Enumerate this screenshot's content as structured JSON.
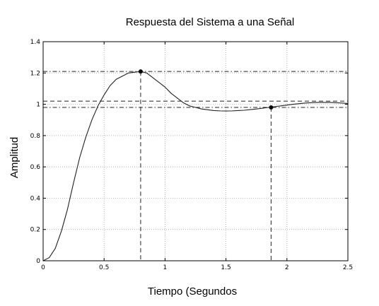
{
  "chart_data": {
    "type": "line",
    "title": "Respuesta del Sistema a una Señal",
    "xlabel": "Tiempo (Segundos",
    "ylabel": "Amplitud",
    "xlim": [
      0,
      2.5
    ],
    "ylim": [
      0,
      1.4
    ],
    "xticks": [
      0,
      0.5,
      1,
      1.5,
      2,
      2.5
    ],
    "xtick_labels": [
      "0",
      "0.5",
      "1",
      "1.5",
      "2",
      "2.5"
    ],
    "yticks": [
      0,
      0.2,
      0.4,
      0.6,
      0.8,
      1,
      1.2,
      1.4
    ],
    "ytick_labels": [
      "0",
      "0.2",
      "0.4",
      "0.6",
      "0.8",
      "1",
      "1.2",
      "1.4"
    ],
    "grid": true,
    "series": [
      {
        "x": [
          0,
          0.05,
          0.1,
          0.15,
          0.2,
          0.25,
          0.3,
          0.35,
          0.4,
          0.45,
          0.5,
          0.55,
          0.6,
          0.65,
          0.7,
          0.75,
          0.8,
          0.85,
          0.9,
          0.95,
          1.0,
          1.05,
          1.1,
          1.15,
          1.2,
          1.25,
          1.3,
          1.35,
          1.4,
          1.45,
          1.5,
          1.55,
          1.6,
          1.65,
          1.7,
          1.75,
          1.8,
          1.85,
          1.9,
          1.95,
          2.0,
          2.05,
          2.1,
          2.15,
          2.2,
          2.25,
          2.3,
          2.35,
          2.4,
          2.45,
          2.5
        ],
        "y": [
          0,
          0.02,
          0.08,
          0.19,
          0.33,
          0.5,
          0.66,
          0.79,
          0.9,
          0.99,
          1.06,
          1.12,
          1.16,
          1.18,
          1.2,
          1.205,
          1.21,
          1.2,
          1.17,
          1.14,
          1.11,
          1.07,
          1.04,
          1.01,
          0.99,
          0.98,
          0.97,
          0.965,
          0.96,
          0.958,
          0.957,
          0.958,
          0.96,
          0.962,
          0.966,
          0.97,
          0.975,
          0.98,
          0.985,
          0.99,
          0.995,
          1.0,
          1.004,
          1.008,
          1.01,
          1.012,
          1.012,
          1.012,
          1.01,
          1.008,
          1.005
        ]
      }
    ],
    "markers": [
      {
        "x": 0.8,
        "y": 1.21
      },
      {
        "x": 1.87,
        "y": 0.98
      }
    ],
    "reference_lines": {
      "horizontal": [
        {
          "y": 1.21,
          "style": "dashdot"
        },
        {
          "y": 1.02,
          "style": "dashed"
        },
        {
          "y": 0.98,
          "style": "dashdot"
        }
      ],
      "vertical": [
        {
          "x": 0.8,
          "style": "dashed"
        },
        {
          "x": 1.87,
          "style": "dashed"
        }
      ]
    }
  }
}
